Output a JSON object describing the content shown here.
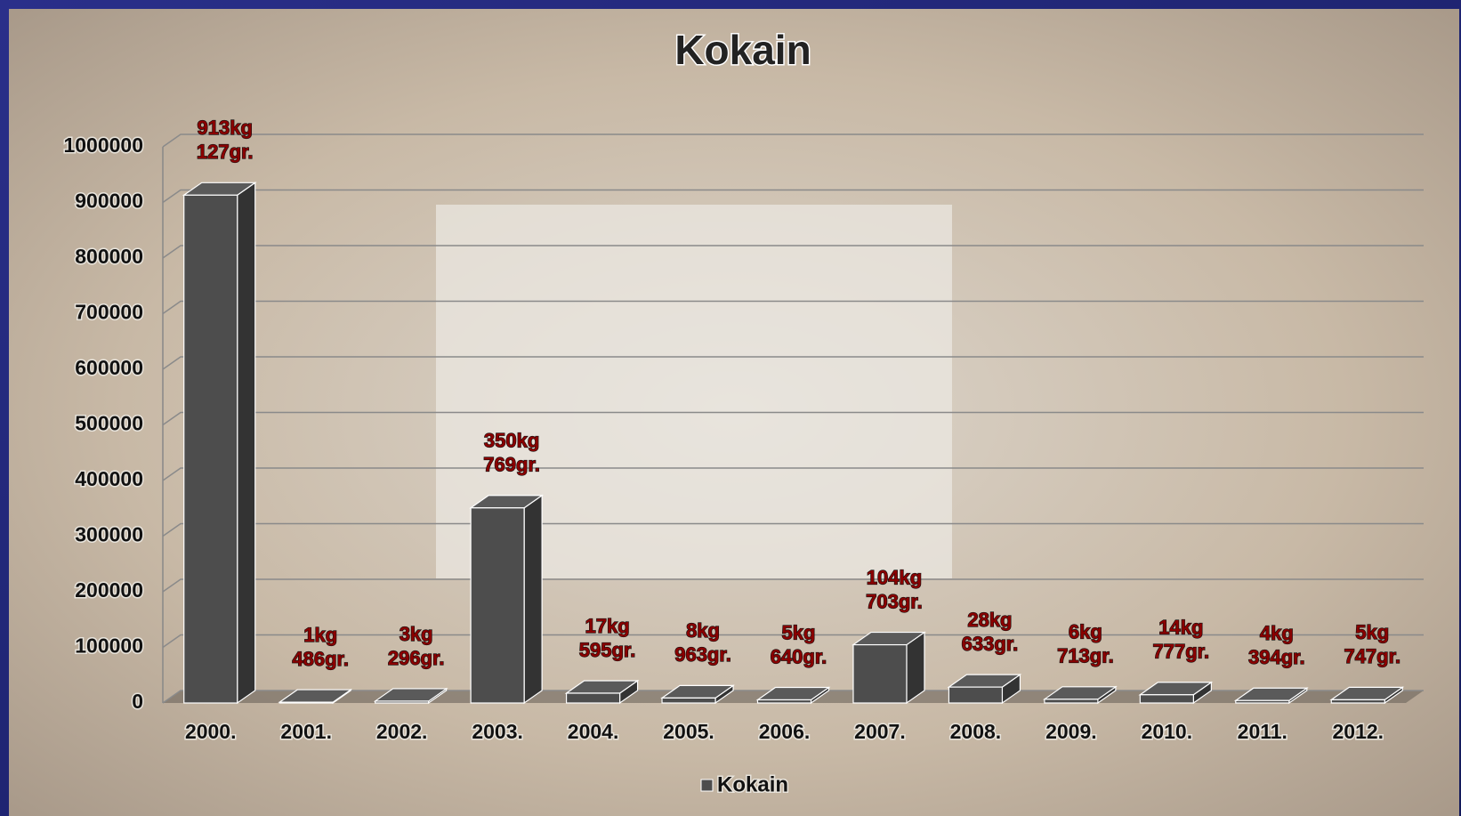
{
  "chart_data": {
    "type": "bar3d",
    "title": "Kokain",
    "categories": [
      "2000.",
      "2001.",
      "2002.",
      "2003.",
      "2004.",
      "2005.",
      "2006.",
      "2007.",
      "2008.",
      "2009.",
      "2010.",
      "2011.",
      "2012."
    ],
    "series": [
      {
        "name": "Kokain",
        "color": "#4d4d4d",
        "values": [
          913127,
          1486,
          3296,
          350769,
          17595,
          8963,
          5640,
          104703,
          28633,
          6713,
          14777,
          4394,
          5747
        ],
        "value_labels": [
          [
            "913kg",
            "127gr."
          ],
          [
            "1kg",
            "486gr."
          ],
          [
            "3kg",
            "296gr."
          ],
          [
            "350kg",
            "769gr."
          ],
          [
            "17kg",
            "595gr."
          ],
          [
            "8kg",
            "963gr."
          ],
          [
            "5kg",
            "640gr."
          ],
          [
            "104kg",
            "703gr."
          ],
          [
            "28kg",
            "633gr."
          ],
          [
            "6kg",
            "713gr."
          ],
          [
            "14kg",
            "777gr."
          ],
          [
            "4kg",
            "394gr."
          ],
          [
            "5kg",
            "747gr."
          ]
        ]
      }
    ],
    "ylim": [
      0,
      1000000
    ],
    "yticks": [
      0,
      100000,
      200000,
      300000,
      400000,
      500000,
      600000,
      700000,
      800000,
      900000,
      1000000
    ],
    "grid": true,
    "legend": "bottom"
  }
}
